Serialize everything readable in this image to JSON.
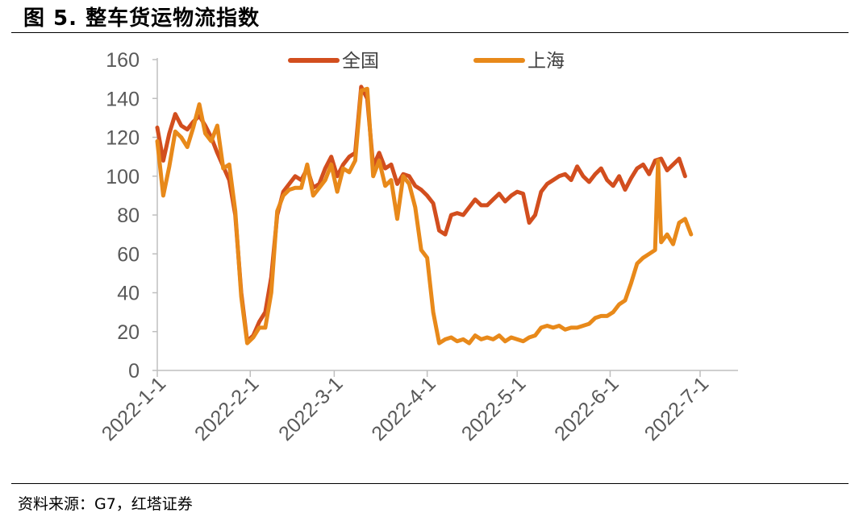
{
  "figure": {
    "title": "图 5. 整车货运物流指数",
    "source": "资料来源：G7，红塔证券"
  },
  "colors": {
    "quanguo": "#D24E1E",
    "shanghai": "#E8891A",
    "axis": "#BFBFBF",
    "tick_text": "#595959"
  },
  "chart_data": {
    "type": "line",
    "title": "",
    "xlabel": "",
    "ylabel": "",
    "ylim": [
      0,
      160
    ],
    "yticks": [
      "0",
      "20",
      "40",
      "60",
      "80",
      "100",
      "120",
      "140",
      "160"
    ],
    "x_ticks": [
      "2022-1-1",
      "2022-2-1",
      "2022-3-1",
      "2022-4-1",
      "2022-5-1",
      "2022-6-1",
      "2022-7-1"
    ],
    "grid": false,
    "legend": "top",
    "series": [
      {
        "name": "全国",
        "color": "#D24E1E",
        "points": [
          [
            "2022-01-01",
            125
          ],
          [
            "2022-01-03",
            108
          ],
          [
            "2022-01-05",
            122
          ],
          [
            "2022-01-07",
            132
          ],
          [
            "2022-01-09",
            126
          ],
          [
            "2022-01-11",
            124
          ],
          [
            "2022-01-13",
            128
          ],
          [
            "2022-01-15",
            131
          ],
          [
            "2022-01-17",
            126
          ],
          [
            "2022-01-19",
            120
          ],
          [
            "2022-01-21",
            112
          ],
          [
            "2022-01-23",
            105
          ],
          [
            "2022-01-25",
            98
          ],
          [
            "2022-01-27",
            80
          ],
          [
            "2022-01-29",
            40
          ],
          [
            "2022-01-31",
            15
          ],
          [
            "2022-02-02",
            18
          ],
          [
            "2022-02-04",
            25
          ],
          [
            "2022-02-06",
            30
          ],
          [
            "2022-02-08",
            48
          ],
          [
            "2022-02-10",
            80
          ],
          [
            "2022-02-12",
            92
          ],
          [
            "2022-02-14",
            96
          ],
          [
            "2022-02-16",
            100
          ],
          [
            "2022-02-18",
            98
          ],
          [
            "2022-02-20",
            104
          ],
          [
            "2022-02-22",
            94
          ],
          [
            "2022-02-24",
            96
          ],
          [
            "2022-02-26",
            104
          ],
          [
            "2022-02-28",
            110
          ],
          [
            "2022-03-02",
            100
          ],
          [
            "2022-03-04",
            106
          ],
          [
            "2022-03-06",
            110
          ],
          [
            "2022-03-08",
            112
          ],
          [
            "2022-03-10",
            146
          ],
          [
            "2022-03-12",
            140
          ],
          [
            "2022-03-14",
            105
          ],
          [
            "2022-03-16",
            112
          ],
          [
            "2022-03-18",
            104
          ],
          [
            "2022-03-20",
            106
          ],
          [
            "2022-03-22",
            96
          ],
          [
            "2022-03-24",
            101
          ],
          [
            "2022-03-26",
            100
          ],
          [
            "2022-03-28",
            95
          ],
          [
            "2022-03-30",
            93
          ],
          [
            "2022-04-01",
            90
          ],
          [
            "2022-04-03",
            86
          ],
          [
            "2022-04-05",
            72
          ],
          [
            "2022-04-07",
            70
          ],
          [
            "2022-04-09",
            80
          ],
          [
            "2022-04-11",
            81
          ],
          [
            "2022-04-13",
            80
          ],
          [
            "2022-04-15",
            84
          ],
          [
            "2022-04-17",
            88
          ],
          [
            "2022-04-19",
            85
          ],
          [
            "2022-04-21",
            85
          ],
          [
            "2022-04-23",
            88
          ],
          [
            "2022-04-25",
            91
          ],
          [
            "2022-04-27",
            87
          ],
          [
            "2022-04-29",
            90
          ],
          [
            "2022-05-01",
            92
          ],
          [
            "2022-05-03",
            91
          ],
          [
            "2022-05-05",
            76
          ],
          [
            "2022-05-07",
            80
          ],
          [
            "2022-05-09",
            92
          ],
          [
            "2022-05-11",
            96
          ],
          [
            "2022-05-13",
            98
          ],
          [
            "2022-05-15",
            100
          ],
          [
            "2022-05-17",
            101
          ],
          [
            "2022-05-19",
            98
          ],
          [
            "2022-05-21",
            105
          ],
          [
            "2022-05-23",
            100
          ],
          [
            "2022-05-25",
            97
          ],
          [
            "2022-05-27",
            101
          ],
          [
            "2022-05-29",
            104
          ],
          [
            "2022-05-31",
            98
          ],
          [
            "2022-06-02",
            95
          ],
          [
            "2022-06-04",
            100
          ],
          [
            "2022-06-06",
            93
          ],
          [
            "2022-06-08",
            99
          ],
          [
            "2022-06-10",
            104
          ],
          [
            "2022-06-12",
            106
          ],
          [
            "2022-06-14",
            101
          ],
          [
            "2022-06-16",
            108
          ],
          [
            "2022-06-18",
            109
          ],
          [
            "2022-06-20",
            103
          ],
          [
            "2022-06-22",
            106
          ],
          [
            "2022-06-24",
            109
          ],
          [
            "2022-06-26",
            100
          ]
        ]
      },
      {
        "name": "上海",
        "color": "#E8891A",
        "points": [
          [
            "2022-01-01",
            118
          ],
          [
            "2022-01-03",
            90
          ],
          [
            "2022-01-05",
            105
          ],
          [
            "2022-01-07",
            123
          ],
          [
            "2022-01-09",
            120
          ],
          [
            "2022-01-11",
            115
          ],
          [
            "2022-01-13",
            125
          ],
          [
            "2022-01-15",
            137
          ],
          [
            "2022-01-17",
            122
          ],
          [
            "2022-01-19",
            118
          ],
          [
            "2022-01-21",
            126
          ],
          [
            "2022-01-23",
            104
          ],
          [
            "2022-01-25",
            106
          ],
          [
            "2022-01-27",
            82
          ],
          [
            "2022-01-29",
            38
          ],
          [
            "2022-01-31",
            14
          ],
          [
            "2022-02-02",
            17
          ],
          [
            "2022-02-04",
            22
          ],
          [
            "2022-02-06",
            22
          ],
          [
            "2022-02-08",
            40
          ],
          [
            "2022-02-10",
            82
          ],
          [
            "2022-02-12",
            90
          ],
          [
            "2022-02-14",
            93
          ],
          [
            "2022-02-16",
            94
          ],
          [
            "2022-02-18",
            94
          ],
          [
            "2022-02-20",
            106
          ],
          [
            "2022-02-22",
            90
          ],
          [
            "2022-02-24",
            94
          ],
          [
            "2022-02-26",
            98
          ],
          [
            "2022-02-28",
            106
          ],
          [
            "2022-03-02",
            92
          ],
          [
            "2022-03-04",
            104
          ],
          [
            "2022-03-06",
            102
          ],
          [
            "2022-03-08",
            108
          ],
          [
            "2022-03-10",
            144
          ],
          [
            "2022-03-12",
            145
          ],
          [
            "2022-03-14",
            100
          ],
          [
            "2022-03-16",
            108
          ],
          [
            "2022-03-18",
            95
          ],
          [
            "2022-03-20",
            98
          ],
          [
            "2022-03-22",
            78
          ],
          [
            "2022-03-24",
            100
          ],
          [
            "2022-03-26",
            96
          ],
          [
            "2022-03-28",
            84
          ],
          [
            "2022-03-30",
            62
          ],
          [
            "2022-04-01",
            58
          ],
          [
            "2022-04-03",
            30
          ],
          [
            "2022-04-05",
            14
          ],
          [
            "2022-04-07",
            16
          ],
          [
            "2022-04-09",
            17
          ],
          [
            "2022-04-11",
            15
          ],
          [
            "2022-04-13",
            16
          ],
          [
            "2022-04-15",
            14
          ],
          [
            "2022-04-17",
            18
          ],
          [
            "2022-04-19",
            16
          ],
          [
            "2022-04-21",
            17
          ],
          [
            "2022-04-23",
            16
          ],
          [
            "2022-04-25",
            18
          ],
          [
            "2022-04-27",
            15
          ],
          [
            "2022-04-29",
            17
          ],
          [
            "2022-05-01",
            16
          ],
          [
            "2022-05-03",
            15
          ],
          [
            "2022-05-05",
            17
          ],
          [
            "2022-05-07",
            18
          ],
          [
            "2022-05-09",
            22
          ],
          [
            "2022-05-11",
            23
          ],
          [
            "2022-05-13",
            22
          ],
          [
            "2022-05-15",
            23
          ],
          [
            "2022-05-17",
            21
          ],
          [
            "2022-05-19",
            22
          ],
          [
            "2022-05-21",
            22
          ],
          [
            "2022-05-23",
            23
          ],
          [
            "2022-05-25",
            24
          ],
          [
            "2022-05-27",
            27
          ],
          [
            "2022-05-29",
            28
          ],
          [
            "2022-05-31",
            28
          ],
          [
            "2022-06-02",
            30
          ],
          [
            "2022-06-04",
            34
          ],
          [
            "2022-06-06",
            36
          ],
          [
            "2022-06-08",
            45
          ],
          [
            "2022-06-10",
            55
          ],
          [
            "2022-06-12",
            58
          ],
          [
            "2022-06-14",
            60
          ],
          [
            "2022-06-16",
            62
          ],
          [
            "2022-06-17",
            108
          ],
          [
            "2022-06-18",
            66
          ],
          [
            "2022-06-20",
            70
          ],
          [
            "2022-06-22",
            65
          ],
          [
            "2022-06-24",
            76
          ],
          [
            "2022-06-26",
            78
          ],
          [
            "2022-06-28",
            70
          ]
        ]
      }
    ]
  }
}
